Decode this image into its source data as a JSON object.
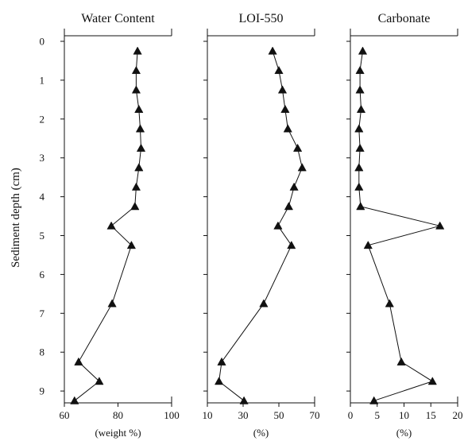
{
  "chart_data": {
    "type": "line",
    "ylabel": "Sediment depth (cm)",
    "ylim": [
      0,
      9.3
    ],
    "yticks": [
      0,
      1,
      2,
      3,
      4,
      5,
      6,
      7,
      8,
      9
    ],
    "y_inverted": true,
    "marker": "triangle",
    "grid": false,
    "panels": [
      {
        "title": "Water Content",
        "xlabel": "(weight %)",
        "xlim": [
          60,
          100
        ],
        "xticks": [
          60,
          80,
          100
        ],
        "depth": [
          0.25,
          0.75,
          1.25,
          1.75,
          2.25,
          2.75,
          3.25,
          3.75,
          4.25,
          4.75,
          5.25,
          6.75,
          8.25,
          8.75,
          9.25
        ],
        "values": [
          87.3,
          86.8,
          86.8,
          87.8,
          88.3,
          88.6,
          87.8,
          86.8,
          86.3,
          77.5,
          85.0,
          77.8,
          65.3,
          73.0,
          63.8
        ]
      },
      {
        "title": "LOI-550",
        "xlabel": "(%)",
        "xlim": [
          10,
          70
        ],
        "xticks": [
          10,
          30,
          50,
          70
        ],
        "depth": [
          0.25,
          0.75,
          1.25,
          1.75,
          2.25,
          2.75,
          3.25,
          3.75,
          4.25,
          4.75,
          5.25,
          6.75,
          8.25,
          8.75,
          9.25
        ],
        "values": [
          46.5,
          50.0,
          52.0,
          53.5,
          55.0,
          60.5,
          63.0,
          58.5,
          55.5,
          49.5,
          57.0,
          41.5,
          18.0,
          16.5,
          30.5
        ]
      },
      {
        "title": "Carbonate",
        "xlabel": "(%)",
        "xlim": [
          0,
          20
        ],
        "xticks": [
          0,
          5,
          10,
          15,
          20
        ],
        "depth": [
          0.25,
          0.75,
          1.25,
          1.75,
          2.25,
          2.75,
          3.25,
          3.75,
          4.25,
          4.75,
          5.25,
          6.75,
          8.25,
          8.75,
          9.25
        ],
        "values": [
          2.3,
          1.8,
          1.8,
          2.0,
          1.6,
          1.8,
          1.6,
          1.6,
          1.9,
          16.7,
          3.3,
          7.3,
          9.5,
          15.3,
          4.4
        ]
      }
    ]
  }
}
